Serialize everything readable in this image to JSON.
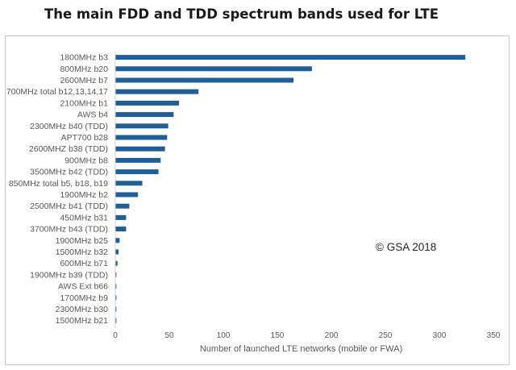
{
  "chart_data": {
    "type": "bar",
    "orientation": "horizontal",
    "title": "The main FDD and TDD spectrum bands used for LTE",
    "xlabel": "Number of launched LTE networks (mobile or FWA)",
    "ylabel": "",
    "xlim": [
      0,
      350
    ],
    "x_ticks": [
      0,
      50,
      100,
      150,
      200,
      250,
      300,
      350
    ],
    "grid": false,
    "legend": "none",
    "bar_color": "#1f5f98",
    "annotation": "© GSA 2018",
    "categories": [
      "1800MHz b3",
      "800MHz b20",
      "2600MHz b7",
      "700MHz total b12,13,14,17",
      "2100MHz b1",
      "AWS b4",
      "2300MHz b40 (TDD)",
      "APT700 b28",
      "2600MHZ b38 (TDD)",
      "900MHz b8",
      "3500MHz b42 (TDD)",
      "850MHz total b5, b18, b19",
      "1900MHz b2",
      "2500MHz b41 (TDD)",
      "450MHz b31",
      "3700MHz b43 (TDD)",
      "1900MHz b25",
      "1500MHz b32",
      "600MHz b71",
      "1900MHz b39 (TDD)",
      "AWS Ext b66",
      "1700MHz b9",
      "2300MHz b30",
      "1500MHz b21"
    ],
    "values": [
      324,
      182,
      165,
      77,
      59,
      54,
      49,
      48,
      46,
      42,
      40,
      25,
      21,
      13,
      10,
      10,
      4,
      3,
      2,
      1,
      1,
      1,
      1,
      1
    ]
  }
}
